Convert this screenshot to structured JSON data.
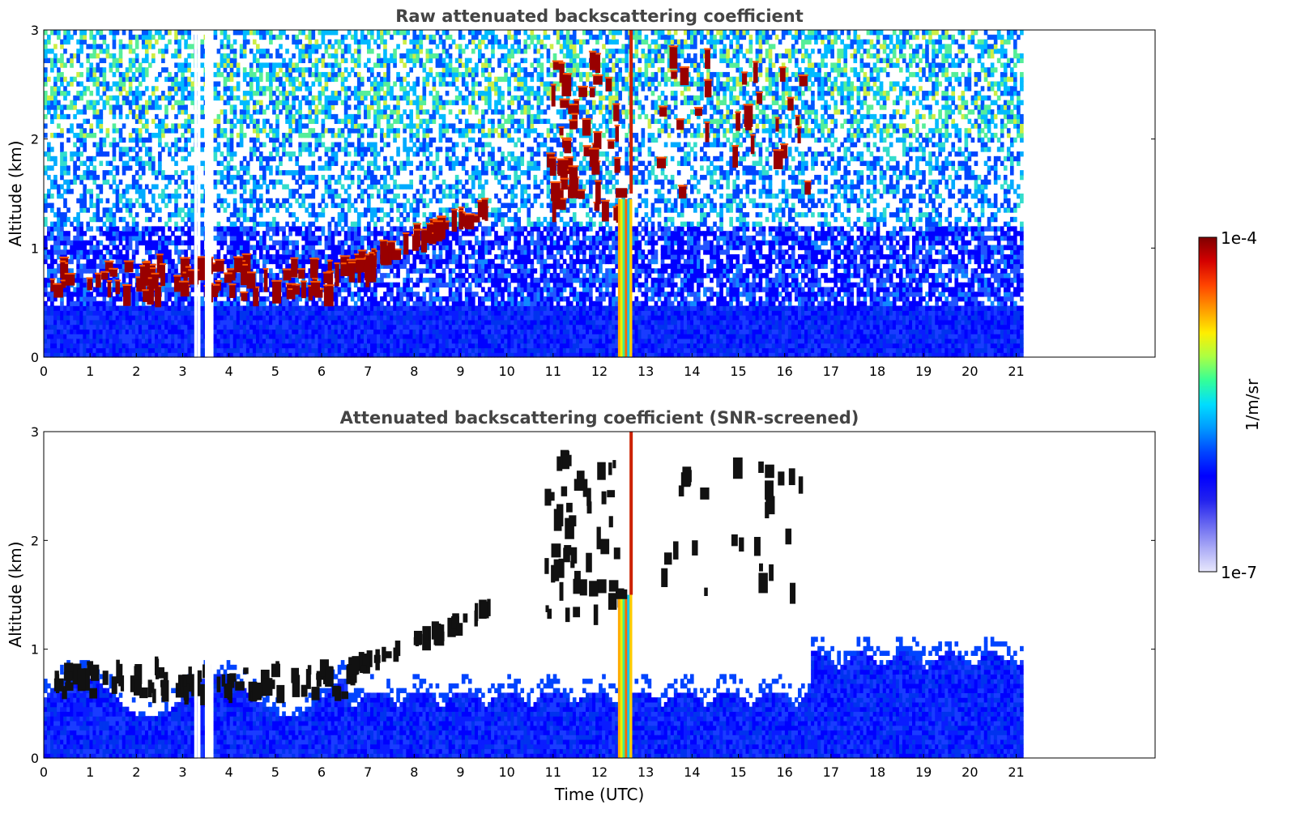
{
  "chart_data": [
    {
      "type": "heatmap",
      "title": "Raw attenuated backscattering coefficient",
      "xlabel": "",
      "ylabel": "Altitude (km)",
      "xlim": [
        0,
        24
      ],
      "ylim": [
        0,
        3
      ],
      "xticks": [
        "0",
        "1",
        "2",
        "3",
        "4",
        "5",
        "6",
        "7",
        "8",
        "9",
        "10",
        "11",
        "12",
        "13",
        "14",
        "15",
        "16",
        "17",
        "18",
        "19",
        "20",
        "21"
      ],
      "yticks": [
        "0",
        "1",
        "2",
        "3"
      ],
      "data_end_x": 21.15,
      "gaps_x": [
        [
          3.25,
          3.32
        ],
        [
          3.48,
          3.62
        ]
      ],
      "features": [
        {
          "kind": "boundary-layer cloud",
          "x": [
            0.1,
            7.0
          ],
          "y": [
            0.4,
            1.0
          ]
        },
        {
          "kind": "rising aerosol layer",
          "x": [
            6.5,
            9.7
          ],
          "y": [
            0.7,
            1.5
          ]
        },
        {
          "kind": "scattered clouds",
          "x": [
            10.8,
            12.4
          ],
          "y": [
            1.3,
            2.8
          ]
        },
        {
          "kind": "precipitation column",
          "x": [
            12.4,
            12.7
          ],
          "y": [
            0.0,
            3.0
          ]
        },
        {
          "kind": "cloud patches",
          "x": [
            13.2,
            16.5
          ],
          "y": [
            1.4,
            2.8
          ]
        }
      ]
    },
    {
      "type": "heatmap",
      "title": "Attenuated backscattering coefficient (SNR-screened)",
      "xlabel": "Time (UTC)",
      "ylabel": "Altitude (km)",
      "xlim": [
        0,
        24
      ],
      "ylim": [
        0,
        3
      ],
      "xticks": [
        "0",
        "1",
        "2",
        "3",
        "4",
        "5",
        "6",
        "7",
        "8",
        "9",
        "10",
        "11",
        "12",
        "13",
        "14",
        "15",
        "16",
        "17",
        "18",
        "19",
        "20",
        "21"
      ],
      "yticks": [
        "0",
        "1",
        "2",
        "3"
      ],
      "data_end_x": 21.15,
      "gaps_x": [
        [
          3.25,
          3.32
        ],
        [
          3.48,
          3.62
        ]
      ]
    }
  ],
  "colorbar": {
    "label": "1/m/sr",
    "max_label": "1e-4",
    "min_label": "1e-7",
    "colors": [
      "#7f0000",
      "#d40000",
      "#ff4400",
      "#ff9900",
      "#ffee00",
      "#aaff44",
      "#33ff99",
      "#00ddff",
      "#0099ff",
      "#0044ff",
      "#0000ff",
      "#2222ee",
      "#6666f0",
      "#aaaaf6",
      "#e8e8fc"
    ]
  }
}
